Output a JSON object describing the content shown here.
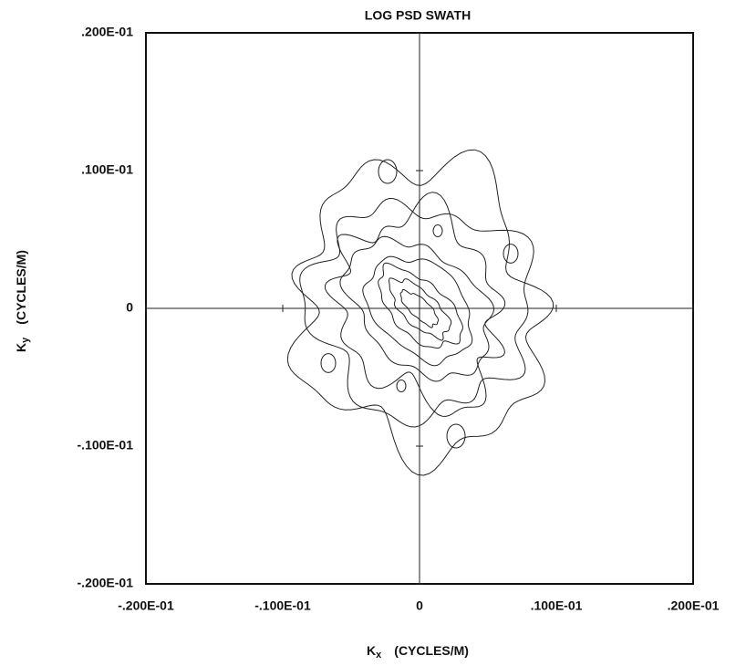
{
  "chart_data": {
    "type": "contour",
    "title": "LOG PSD SWATH",
    "xlabel_symbol": "K",
    "xlabel_subscript": "x",
    "xlabel_unit": "(CYCLES/M)",
    "ylabel_symbol": "K",
    "ylabel_subscript": "y",
    "ylabel_unit": "(CYCLES/M)",
    "xlim": [
      -0.02,
      0.02
    ],
    "ylim": [
      -0.02,
      0.02
    ],
    "xticks": [
      {
        "value": -0.02,
        "label": "-.200E-01"
      },
      {
        "value": -0.01,
        "label": "-.100E-01"
      },
      0,
      {
        "value": 0.01,
        "label": ".100E-01"
      },
      {
        "value": 0.02,
        "label": ".200E-01"
      }
    ],
    "yticks": [
      {
        "value": -0.02,
        "label": "-.200E-01"
      },
      {
        "value": -0.01,
        "label": "-.100E-01"
      },
      0,
      {
        "value": 0.01,
        "label": ".100E-01"
      },
      {
        "value": 0.02,
        "label": ".200E-01"
      }
    ]
  }
}
